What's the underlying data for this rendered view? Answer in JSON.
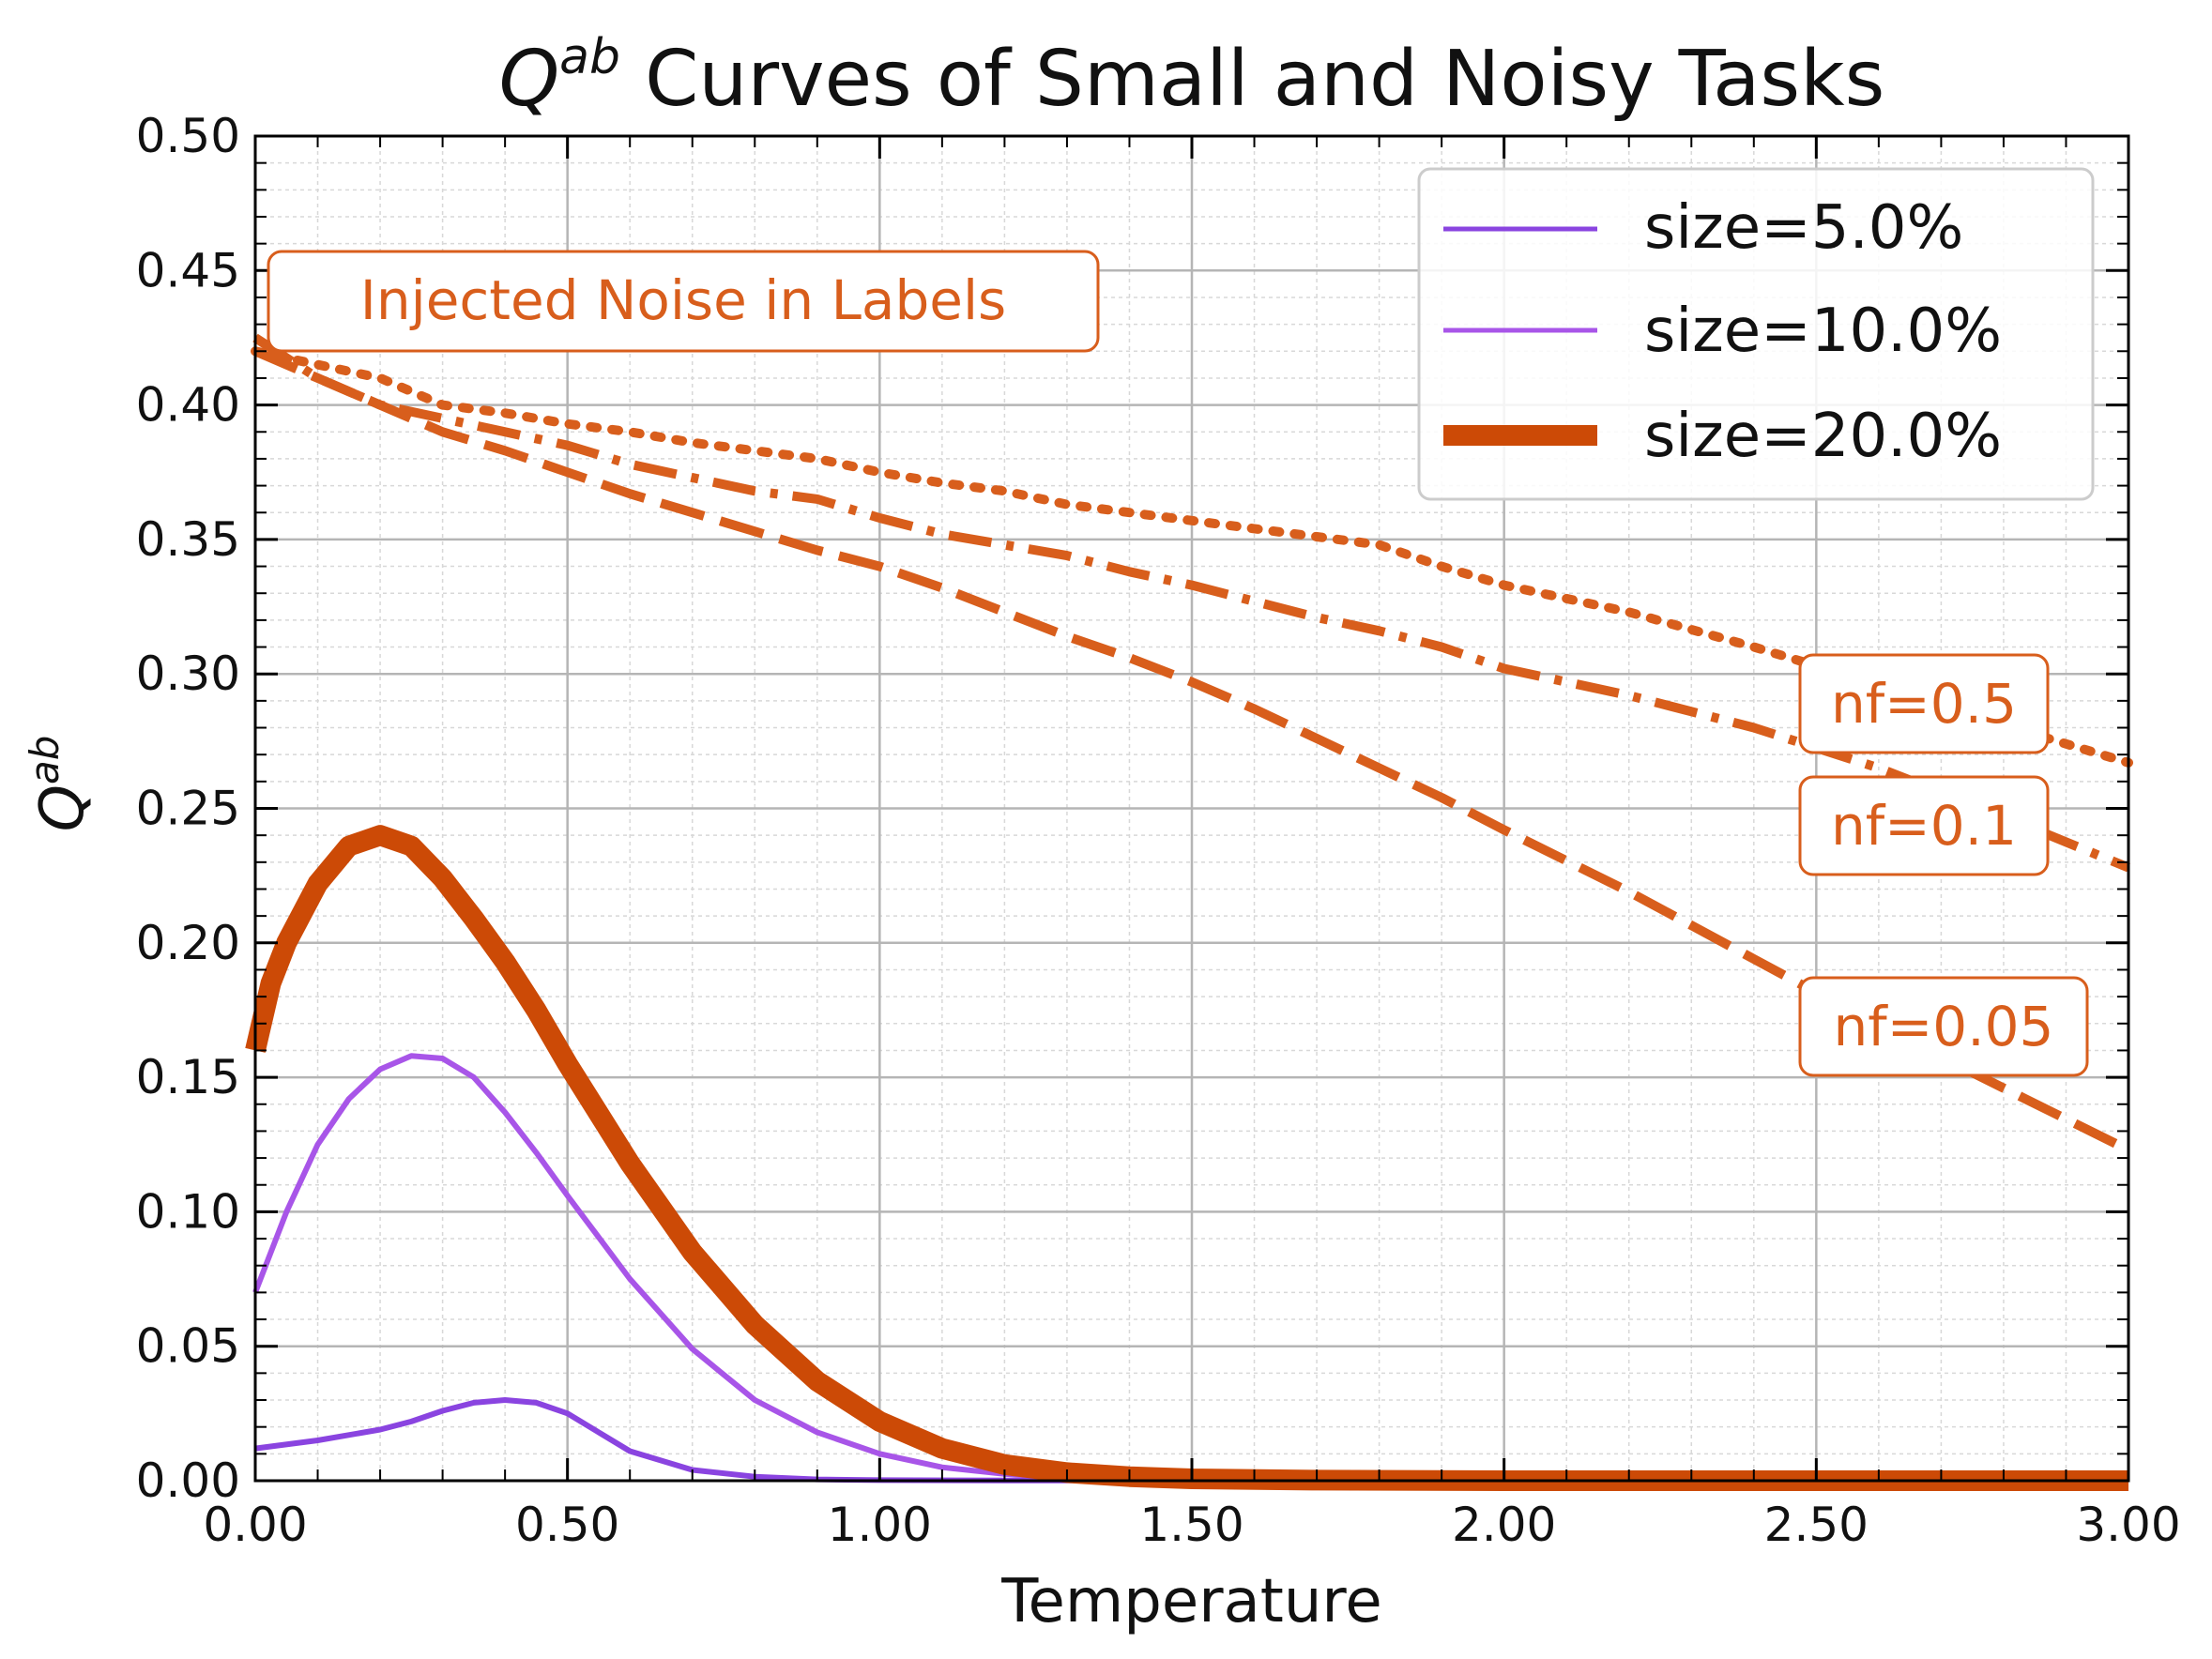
{
  "chart_data": {
    "type": "line",
    "title_main": "Q",
    "title_sup": "ab",
    "title_rest": " Curves of Small and Noisy Tasks",
    "xlabel": "Temperature",
    "ylabel_main": "Q",
    "ylabel_sup": "ab",
    "xlim": [
      0,
      3.0
    ],
    "ylim": [
      0,
      0.5
    ],
    "xticks": [
      0,
      0.5,
      1.0,
      1.5,
      2.0,
      2.5,
      3.0
    ],
    "xtick_labels": [
      "0.00",
      "0.50",
      "1.00",
      "1.50",
      "2.00",
      "2.50",
      "3.00"
    ],
    "yticks": [
      0,
      0.05,
      0.1,
      0.15,
      0.2,
      0.25,
      0.3,
      0.35,
      0.4,
      0.45,
      0.5
    ],
    "ytick_labels": [
      "0.00",
      "0.05",
      "0.10",
      "0.15",
      "0.20",
      "0.25",
      "0.30",
      "0.35",
      "0.40",
      "0.45",
      "0.50"
    ],
    "grid": true,
    "legend_position": "top-right",
    "colors": {
      "small": "#8a44e0",
      "medium": "#a855e8",
      "large": "#cc4a06",
      "noise": "#d85e1c"
    },
    "series": [
      {
        "name": "size=5.0%",
        "style": "solid",
        "color": "#8a44e0",
        "x": [
          0.0,
          0.1,
          0.2,
          0.25,
          0.3,
          0.35,
          0.4,
          0.45,
          0.5,
          0.55,
          0.6,
          0.7,
          0.8,
          0.9,
          1.0,
          1.2,
          1.5,
          2.0,
          3.0
        ],
        "y": [
          0.012,
          0.015,
          0.019,
          0.022,
          0.026,
          0.029,
          0.03,
          0.029,
          0.025,
          0.018,
          0.011,
          0.004,
          0.0015,
          0.0005,
          0.0002,
          0.0001,
          0.0,
          0.0,
          0.0
        ]
      },
      {
        "name": "size=10.0%",
        "style": "solid",
        "color": "#a855e8",
        "x": [
          0.0,
          0.05,
          0.1,
          0.15,
          0.2,
          0.25,
          0.3,
          0.35,
          0.4,
          0.45,
          0.5,
          0.6,
          0.7,
          0.8,
          0.9,
          1.0,
          1.1,
          1.2,
          1.3,
          1.5,
          2.0,
          3.0
        ],
        "y": [
          0.07,
          0.1,
          0.125,
          0.142,
          0.153,
          0.158,
          0.157,
          0.15,
          0.137,
          0.122,
          0.106,
          0.075,
          0.049,
          0.03,
          0.018,
          0.01,
          0.005,
          0.0025,
          0.001,
          0.0,
          0.0,
          0.0
        ]
      },
      {
        "name": "size=20.0%",
        "style": "solid",
        "color": "#cc4a06",
        "x": [
          0.0,
          0.025,
          0.05,
          0.1,
          0.15,
          0.2,
          0.25,
          0.3,
          0.35,
          0.4,
          0.45,
          0.5,
          0.6,
          0.7,
          0.8,
          0.9,
          1.0,
          1.1,
          1.2,
          1.3,
          1.4,
          1.5,
          1.7,
          2.0,
          3.0
        ],
        "y": [
          0.16,
          0.185,
          0.2,
          0.222,
          0.236,
          0.24,
          0.236,
          0.224,
          0.209,
          0.193,
          0.175,
          0.155,
          0.118,
          0.085,
          0.058,
          0.037,
          0.022,
          0.012,
          0.006,
          0.003,
          0.0015,
          0.0007,
          0.0002,
          0.0,
          0.0
        ]
      },
      {
        "name": "nf=0.5",
        "style": "dotted",
        "color": "#d85e1c",
        "x": [
          0.0,
          0.1,
          0.2,
          0.3,
          0.4,
          0.5,
          0.6,
          0.7,
          0.8,
          0.9,
          1.0,
          1.1,
          1.2,
          1.3,
          1.4,
          1.5,
          1.6,
          1.7,
          1.8,
          1.9,
          2.0,
          2.2,
          2.4,
          2.6,
          2.8,
          3.0
        ],
        "y": [
          0.42,
          0.415,
          0.41,
          0.4,
          0.397,
          0.393,
          0.39,
          0.386,
          0.383,
          0.38,
          0.375,
          0.371,
          0.368,
          0.363,
          0.36,
          0.357,
          0.354,
          0.351,
          0.348,
          0.34,
          0.333,
          0.323,
          0.31,
          0.296,
          0.281,
          0.267
        ]
      },
      {
        "name": "nf=0.1",
        "style": "dashdot",
        "color": "#d85e1c",
        "x": [
          0.0,
          0.1,
          0.2,
          0.3,
          0.4,
          0.5,
          0.6,
          0.7,
          0.8,
          0.9,
          1.0,
          1.1,
          1.2,
          1.3,
          1.4,
          1.5,
          1.6,
          1.7,
          1.8,
          1.9,
          2.0,
          2.2,
          2.4,
          2.6,
          2.8,
          3.0
        ],
        "y": [
          0.425,
          0.41,
          0.4,
          0.395,
          0.39,
          0.385,
          0.378,
          0.373,
          0.368,
          0.365,
          0.358,
          0.352,
          0.348,
          0.344,
          0.338,
          0.333,
          0.327,
          0.321,
          0.316,
          0.31,
          0.302,
          0.292,
          0.28,
          0.265,
          0.247,
          0.228
        ]
      },
      {
        "name": "nf=0.05",
        "style": "dashed",
        "color": "#d85e1c",
        "x": [
          0.0,
          0.1,
          0.2,
          0.3,
          0.4,
          0.5,
          0.6,
          0.7,
          0.8,
          0.9,
          1.0,
          1.1,
          1.2,
          1.3,
          1.4,
          1.5,
          1.6,
          1.7,
          1.8,
          1.9,
          2.0,
          2.2,
          2.4,
          2.6,
          2.8,
          3.0
        ],
        "y": [
          0.42,
          0.41,
          0.4,
          0.39,
          0.383,
          0.375,
          0.367,
          0.36,
          0.353,
          0.346,
          0.34,
          0.332,
          0.323,
          0.314,
          0.306,
          0.297,
          0.287,
          0.276,
          0.265,
          0.254,
          0.242,
          0.219,
          0.194,
          0.169,
          0.146,
          0.123
        ]
      }
    ],
    "legend": [
      "size=5.0%",
      "size=10.0%",
      "size=20.0%"
    ],
    "annotations": {
      "box_label": "Injected Noise in Labels",
      "nf_labels": [
        "nf=0.5",
        "nf=0.1",
        "nf=0.05"
      ]
    }
  }
}
